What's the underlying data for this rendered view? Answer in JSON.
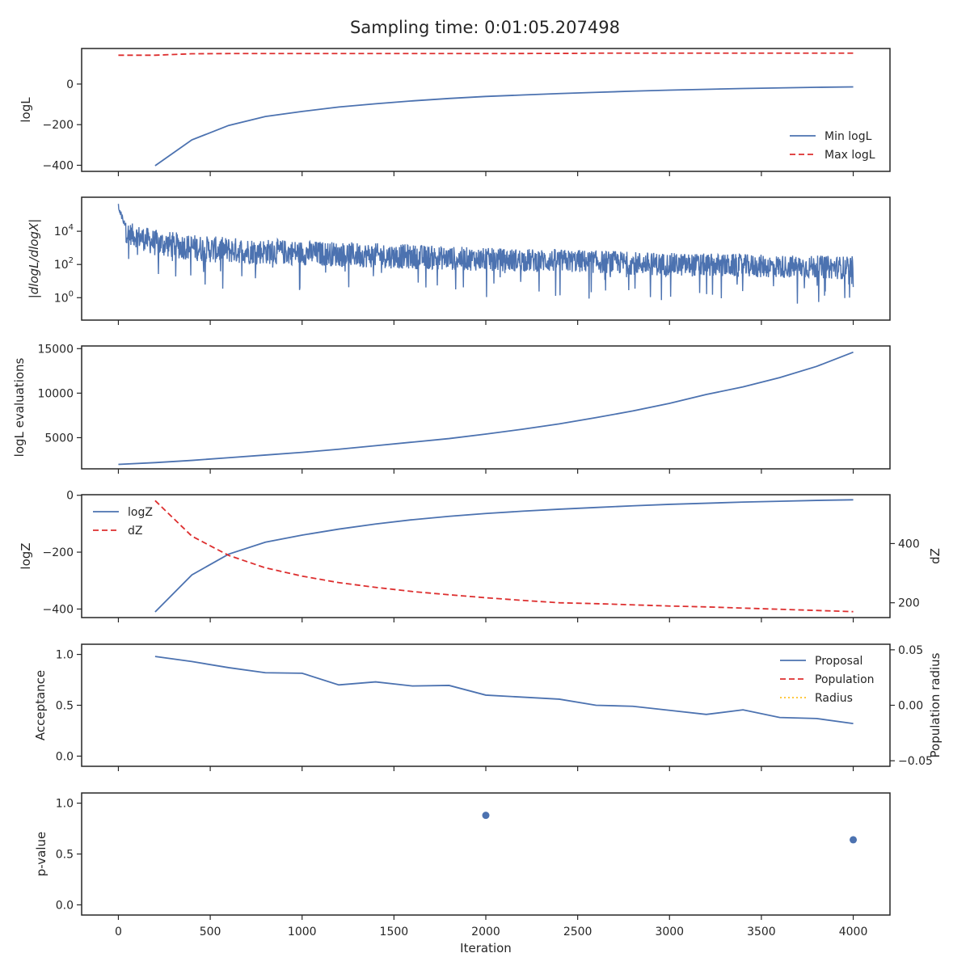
{
  "figure_title": "Sampling time: 0:01:05.207498",
  "colors": {
    "blue": "#4c72b0",
    "red": "#dd2e2e",
    "gold": "#ffc125",
    "axis": "#262626"
  },
  "chart_data": [
    {
      "id": "logl",
      "type": "line",
      "ylabel": "logL",
      "ylim": [
        -430,
        175
      ],
      "yticks": [
        {
          "v": -400,
          "t": "−400"
        },
        {
          "v": -200,
          "t": "−200"
        },
        {
          "v": 0,
          "t": "0"
        }
      ],
      "legend": "lower-right",
      "series": [
        {
          "name": "Min logL",
          "color": "#4c72b0",
          "dash": "none",
          "x": [
            200,
            400,
            600,
            800,
            1000,
            1200,
            1400,
            1600,
            1800,
            2000,
            2200,
            2400,
            2600,
            2800,
            3000,
            3200,
            3400,
            3600,
            3800,
            4000
          ],
          "y": [
            -402,
            -275,
            -204,
            -160,
            -135,
            -113,
            -97,
            -83,
            -71,
            -61,
            -54,
            -47,
            -41,
            -35,
            -30,
            -26,
            -22,
            -19,
            -16,
            -14
          ]
        },
        {
          "name": "Max logL",
          "color": "#dd2e2e",
          "dash": "7,4",
          "x": [
            0,
            200,
            400,
            600,
            800,
            1000,
            1500,
            2000,
            2500,
            2600,
            3000,
            3500,
            4000
          ],
          "y": [
            142,
            142,
            149,
            150,
            150,
            150,
            150,
            150,
            151,
            152,
            152,
            152,
            152
          ]
        }
      ]
    },
    {
      "id": "dlogl",
      "type": "line",
      "yscale": "log",
      "ylabel": "|dlogL/dlogX|",
      "ylim_log10": [
        -1.35,
        6.05
      ],
      "yticks": [
        {
          "v": 0,
          "base": "10",
          "exp": "0"
        },
        {
          "v": 2,
          "base": "10",
          "exp": "2"
        },
        {
          "v": 4,
          "base": "10",
          "exp": "4"
        }
      ],
      "series": [
        {
          "name": "",
          "color": "#4c72b0",
          "x_range": [
            0,
            4000
          ],
          "envelope_log10": {
            "x": [
              0,
              200,
              500,
              1000,
              1500,
              2000,
              2500,
              3000,
              3500,
              4000
            ],
            "center": [
              4.1,
              3.3,
              2.9,
              2.7,
              2.5,
              2.3,
              2.2,
              2.0,
              1.9,
              1.8
            ],
            "spread": [
              0.6,
              0.8,
              0.8,
              0.75,
              0.75,
              0.7,
              0.7,
              0.7,
              0.7,
              0.7
            ]
          },
          "peak_log10": 5.65,
          "min_log10": -1.1
        }
      ]
    },
    {
      "id": "evals",
      "type": "line",
      "ylabel": "logL evaluations",
      "ylim": [
        1500,
        15300
      ],
      "yticks": [
        {
          "v": 5000,
          "t": "5000"
        },
        {
          "v": 10000,
          "t": "10000"
        },
        {
          "v": 15000,
          "t": "15000"
        }
      ],
      "series": [
        {
          "name": "",
          "color": "#4c72b0",
          "dash": "none",
          "x": [
            0,
            200,
            400,
            600,
            800,
            1000,
            1200,
            1400,
            1600,
            1800,
            2000,
            2200,
            2400,
            2600,
            2800,
            3000,
            3200,
            3400,
            3600,
            3800,
            4000
          ],
          "y": [
            2000,
            2200,
            2450,
            2750,
            3050,
            3350,
            3700,
            4100,
            4500,
            4900,
            5400,
            5950,
            6550,
            7250,
            8000,
            8850,
            9850,
            10700,
            11750,
            13000,
            14600
          ]
        }
      ]
    },
    {
      "id": "logz",
      "type": "line",
      "ylabel": "logZ",
      "ylim": [
        -430,
        2
      ],
      "yticks": [
        {
          "v": -400,
          "t": "−400"
        },
        {
          "v": -200,
          "t": "−200"
        },
        {
          "v": 0,
          "t": "0"
        }
      ],
      "ylabel2": "dZ",
      "ylim2": [
        150,
        565
      ],
      "yticks2": [
        {
          "v": 200,
          "t": "200"
        },
        {
          "v": 400,
          "t": "400"
        }
      ],
      "legend": "upper-left",
      "series": [
        {
          "name": "logZ",
          "color": "#4c72b0",
          "dash": "none",
          "axis": "left",
          "x": [
            200,
            400,
            600,
            800,
            1000,
            1200,
            1400,
            1600,
            1800,
            2000,
            2200,
            2400,
            2600,
            2800,
            3000,
            3200,
            3400,
            3600,
            3800,
            4000
          ],
          "y": [
            -410,
            -280,
            -207,
            -165,
            -140,
            -119,
            -101,
            -86,
            -74,
            -64,
            -56,
            -49,
            -43,
            -37,
            -32,
            -28,
            -24,
            -21,
            -18,
            -16
          ]
        },
        {
          "name": "dZ",
          "color": "#dd2e2e",
          "dash": "7,4",
          "axis": "right",
          "x": [
            200,
            400,
            600,
            800,
            1000,
            1200,
            1400,
            1600,
            1800,
            2000,
            2200,
            2400,
            2600,
            2800,
            3000,
            3200,
            3400,
            3600,
            3800,
            4000
          ],
          "y": [
            545,
            425,
            360,
            318,
            290,
            268,
            252,
            238,
            227,
            217,
            208,
            200,
            197,
            193,
            189,
            186,
            182,
            178,
            174,
            170
          ]
        }
      ]
    },
    {
      "id": "accept",
      "type": "line",
      "ylabel": "Acceptance",
      "ylim": [
        -0.1,
        1.1
      ],
      "yticks": [
        {
          "v": 0.0,
          "t": "0.0"
        },
        {
          "v": 0.5,
          "t": "0.5"
        },
        {
          "v": 1.0,
          "t": "1.0"
        }
      ],
      "ylabel2": "Population radius",
      "ylim2": [
        -0.055,
        0.055
      ],
      "yticks2": [
        {
          "v": -0.05,
          "t": "−0.05"
        },
        {
          "v": 0.0,
          "t": "0.00"
        },
        {
          "v": 0.05,
          "t": "0.05"
        }
      ],
      "legend": "upper-right",
      "series": [
        {
          "name": "Proposal",
          "color": "#4c72b0",
          "dash": "none",
          "axis": "left",
          "x": [
            200,
            400,
            600,
            800,
            1000,
            1200,
            1400,
            1600,
            1800,
            2000,
            2200,
            2400,
            2600,
            2800,
            3000,
            3200,
            3400,
            3600,
            3800,
            4000
          ],
          "y": [
            0.98,
            0.93,
            0.87,
            0.82,
            0.815,
            0.7,
            0.73,
            0.69,
            0.695,
            0.6,
            0.58,
            0.56,
            0.5,
            0.49,
            0.45,
            0.41,
            0.455,
            0.38,
            0.37,
            0.32
          ]
        },
        {
          "name": "Population",
          "color": "#dd2e2e",
          "dash": "7,4",
          "axis": "right",
          "x": [],
          "y": []
        },
        {
          "name": "Radius",
          "color": "#ffc125",
          "dash": "2,3",
          "axis": "right",
          "x": [],
          "y": []
        }
      ]
    },
    {
      "id": "pvalue",
      "type": "scatter",
      "ylabel": "p-value",
      "ylim": [
        -0.1,
        1.1
      ],
      "yticks": [
        {
          "v": 0.0,
          "t": "0.0"
        },
        {
          "v": 0.5,
          "t": "0.5"
        },
        {
          "v": 1.0,
          "t": "1.0"
        }
      ],
      "xlabel": "Iteration",
      "xlim": [
        -200,
        4200
      ],
      "xticks": [
        {
          "v": 0,
          "t": "0"
        },
        {
          "v": 500,
          "t": "500"
        },
        {
          "v": 1000,
          "t": "1000"
        },
        {
          "v": 1500,
          "t": "1500"
        },
        {
          "v": 2000,
          "t": "2000"
        },
        {
          "v": 2500,
          "t": "2500"
        },
        {
          "v": 3000,
          "t": "3000"
        },
        {
          "v": 3500,
          "t": "3500"
        },
        {
          "v": 4000,
          "t": "4000"
        }
      ],
      "series": [
        {
          "name": "",
          "color": "#4c72b0",
          "x": [
            2000,
            4000
          ],
          "y": [
            0.88,
            0.64
          ]
        }
      ]
    }
  ]
}
